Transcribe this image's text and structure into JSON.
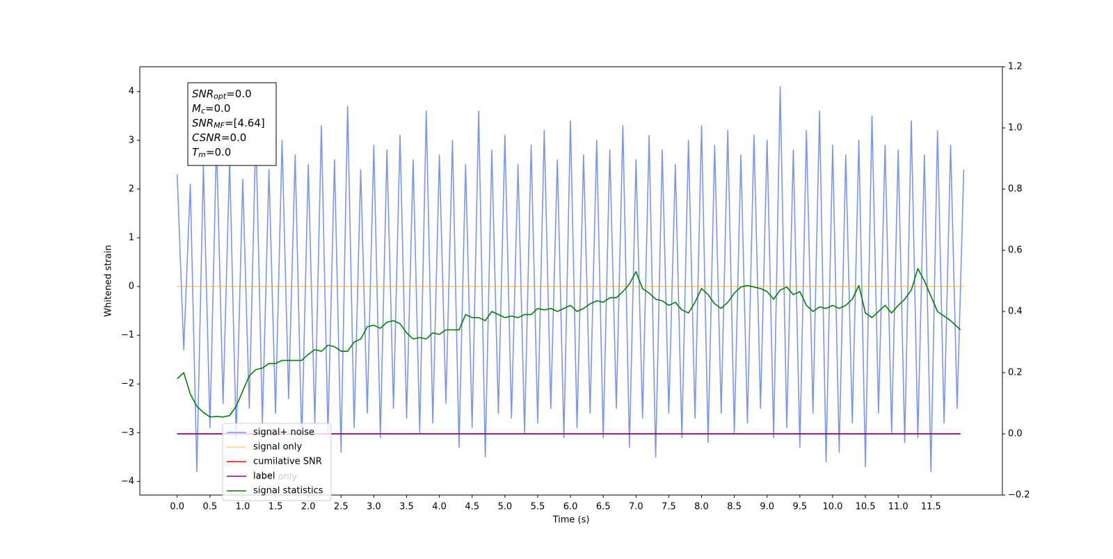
{
  "chart_data": {
    "type": "line",
    "xlabel": "Time (s)",
    "ylabel": "Whitened strain",
    "xlim": [
      -0.57,
      12.59
    ],
    "ylim": [
      -4.28,
      4.51
    ],
    "y2lim": [
      -0.2,
      1.2
    ],
    "xticks": [
      {
        "value": 0,
        "label": "0.0"
      },
      0.5,
      {
        "value": 1,
        "label": "1.0"
      },
      1.5,
      {
        "value": 2,
        "label": "2.0"
      },
      2.5,
      {
        "value": 3,
        "label": "3.0"
      },
      3.5,
      {
        "value": 4,
        "label": "4.0"
      },
      4.5,
      {
        "value": 5,
        "label": "5.0"
      },
      5.5,
      {
        "value": 6,
        "label": "6.0"
      },
      6.5,
      {
        "value": 7,
        "label": "7.0"
      },
      7.5,
      {
        "value": 8,
        "label": "8.0"
      },
      8.5,
      {
        "value": 9,
        "label": "9.0"
      },
      9.5,
      {
        "value": 10,
        "label": "10.0"
      },
      10.5,
      {
        "value": 11,
        "label": "11.0"
      },
      11.5
    ],
    "yticks": [
      {
        "value": -4,
        "label": "−4"
      },
      {
        "value": -3,
        "label": "−3"
      },
      {
        "value": -2,
        "label": "−2"
      },
      {
        "value": -1,
        "label": "−1"
      },
      0,
      1,
      2,
      3,
      4
    ],
    "y2ticks": [
      {
        "value": -0.2,
        "label": "−0.2"
      },
      {
        "value": 0,
        "label": "0.0"
      },
      0.2,
      0.4,
      0.6,
      0.8,
      {
        "value": 1,
        "label": "1.0"
      },
      1.2
    ],
    "legend": "lower left",
    "series": [
      {
        "name": "signal+ noise",
        "color": "#4169e1",
        "alpha": 0.7,
        "x": [
          0,
          0.1,
          0.2,
          0.3,
          0.4,
          0.5,
          0.6,
          0.7,
          0.8,
          0.9,
          1,
          1.1,
          1.2,
          1.3,
          1.4,
          1.5,
          1.6,
          1.7,
          1.8,
          1.9,
          2,
          2.1,
          2.2,
          2.3,
          2.4,
          2.5,
          2.6,
          2.7,
          2.8,
          2.9,
          3,
          3.1,
          3.2,
          3.3,
          3.4,
          3.5,
          3.6,
          3.7,
          3.8,
          3.9,
          4,
          4.1,
          4.2,
          4.3,
          4.4,
          4.5,
          4.6,
          4.7,
          4.8,
          4.9,
          5,
          5.1,
          5.2,
          5.3,
          5.4,
          5.5,
          5.6,
          5.7,
          5.8,
          5.9,
          6,
          6.1,
          6.2,
          6.3,
          6.4,
          6.5,
          6.6,
          6.7,
          6.8,
          6.9,
          7,
          7.1,
          7.2,
          7.3,
          7.4,
          7.5,
          7.6,
          7.7,
          7.8,
          7.9,
          8,
          8.1,
          8.2,
          8.3,
          8.4,
          8.5,
          8.6,
          8.7,
          8.8,
          8.9,
          9,
          9.1,
          9.2,
          9.3,
          9.4,
          9.5,
          9.6,
          9.7,
          9.8,
          9.9,
          10,
          10.1,
          10.2,
          10.3,
          10.4,
          10.5,
          10.6,
          10.7,
          10.8,
          10.9,
          11,
          11.1,
          11.2,
          11.3,
          11.4,
          11.5,
          11.6,
          11.7,
          11.8,
          11.9,
          12
        ],
        "values": [
          2.3,
          -1.3,
          2.1,
          -3.8,
          2.5,
          -2.9,
          3.0,
          -2.4,
          2.6,
          -3.1,
          2.2,
          -2.5,
          3.2,
          -2.8,
          2.4,
          -2.6,
          3.0,
          -2.3,
          2.7,
          -3.2,
          2.5,
          -2.8,
          3.3,
          -3.0,
          2.6,
          -3.4,
          3.7,
          -2.9,
          2.4,
          -2.6,
          2.9,
          -3.1,
          2.8,
          -2.5,
          3.1,
          -2.7,
          2.6,
          -3.0,
          3.6,
          -2.8,
          2.7,
          -2.4,
          3.0,
          -3.3,
          2.5,
          -2.9,
          3.6,
          -3.5,
          2.8,
          -2.6,
          3.1,
          -2.7,
          2.5,
          -3.0,
          2.9,
          -2.8,
          3.2,
          -2.5,
          2.6,
          -3.1,
          3.4,
          -2.9,
          2.7,
          -2.6,
          3.0,
          -3.1,
          2.8,
          -2.5,
          3.3,
          -3.3,
          2.6,
          -2.7,
          3.1,
          -3.5,
          2.8,
          -2.6,
          2.5,
          -3.1,
          3.0,
          -2.7,
          3.3,
          -3.2,
          2.9,
          -2.6,
          3.2,
          -3.0,
          2.7,
          -2.8,
          3.1,
          -2.5,
          3.0,
          -3.1,
          4.1,
          -2.9,
          2.8,
          -3.3,
          3.2,
          -2.6,
          3.6,
          -3.6,
          2.9,
          -3.4,
          2.7,
          -2.8,
          3.0,
          -3.7,
          3.5,
          -2.6,
          2.9,
          -3.0,
          2.8,
          -3.2,
          3.4,
          -3.1,
          2.7,
          -3.8,
          3.2,
          -2.8,
          2.9,
          -2.5,
          2.4
        ]
      },
      {
        "name": "signal only",
        "color": "#ffa500",
        "alpha": 0.5,
        "x": [
          0,
          12
        ],
        "values": [
          0,
          0
        ]
      },
      {
        "name": "cumilative SNR",
        "color": "#ff0000",
        "alpha": 1,
        "axis": "y2",
        "x": [
          0,
          11.95
        ],
        "values": [
          0,
          0
        ]
      },
      {
        "name": "label",
        "color": "#800080",
        "alpha": 1,
        "axis": "y2",
        "x": [
          0,
          11.95
        ],
        "values": [
          0,
          0
        ]
      },
      {
        "name": "signal statistics",
        "color": "#008000",
        "alpha": 1,
        "axis": "y2",
        "x": [
          0,
          0.1,
          0.2,
          0.3,
          0.4,
          0.5,
          0.6,
          0.7,
          0.8,
          0.9,
          1,
          1.1,
          1.2,
          1.3,
          1.4,
          1.5,
          1.6,
          1.7,
          1.8,
          1.9,
          2,
          2.1,
          2.2,
          2.3,
          2.4,
          2.5,
          2.6,
          2.7,
          2.8,
          2.9,
          3,
          3.1,
          3.2,
          3.3,
          3.4,
          3.5,
          3.6,
          3.7,
          3.8,
          3.9,
          4,
          4.1,
          4.2,
          4.3,
          4.4,
          4.5,
          4.6,
          4.7,
          4.8,
          4.9,
          5,
          5.1,
          5.2,
          5.3,
          5.4,
          5.5,
          5.6,
          5.7,
          5.8,
          5.9,
          6,
          6.1,
          6.2,
          6.3,
          6.4,
          6.5,
          6.6,
          6.7,
          6.8,
          6.9,
          7,
          7.1,
          7.2,
          7.3,
          7.4,
          7.5,
          7.6,
          7.7,
          7.8,
          7.9,
          8,
          8.1,
          8.2,
          8.3,
          8.4,
          8.5,
          8.6,
          8.7,
          8.8,
          8.9,
          9,
          9.1,
          9.2,
          9.3,
          9.4,
          9.5,
          9.6,
          9.7,
          9.8,
          9.9,
          10,
          10.1,
          10.2,
          10.3,
          10.4,
          10.5,
          10.6,
          10.7,
          10.8,
          10.9,
          11,
          11.1,
          11.2,
          11.3,
          11.4,
          11.5,
          11.6,
          11.7,
          11.8,
          11.9,
          11.95
        ],
        "values": [
          0.18,
          0.2,
          0.13,
          0.09,
          0.07,
          0.055,
          0.057,
          0.055,
          0.06,
          0.09,
          0.14,
          0.19,
          0.21,
          0.215,
          0.23,
          0.23,
          0.24,
          0.24,
          0.24,
          0.24,
          0.26,
          0.275,
          0.27,
          0.29,
          0.285,
          0.27,
          0.27,
          0.3,
          0.31,
          0.35,
          0.355,
          0.345,
          0.365,
          0.37,
          0.36,
          0.33,
          0.31,
          0.315,
          0.31,
          0.33,
          0.325,
          0.34,
          0.34,
          0.34,
          0.39,
          0.38,
          0.38,
          0.37,
          0.4,
          0.39,
          0.38,
          0.385,
          0.38,
          0.39,
          0.39,
          0.41,
          0.405,
          0.41,
          0.4,
          0.41,
          0.42,
          0.4,
          0.41,
          0.425,
          0.435,
          0.43,
          0.445,
          0.445,
          0.465,
          0.49,
          0.53,
          0.475,
          0.46,
          0.44,
          0.435,
          0.42,
          0.43,
          0.405,
          0.395,
          0.43,
          0.475,
          0.455,
          0.425,
          0.41,
          0.43,
          0.46,
          0.48,
          0.485,
          0.48,
          0.475,
          0.465,
          0.44,
          0.47,
          0.48,
          0.455,
          0.465,
          0.42,
          0.4,
          0.415,
          0.41,
          0.42,
          0.41,
          0.42,
          0.44,
          0.485,
          0.395,
          0.38,
          0.4,
          0.42,
          0.395,
          0.42,
          0.44,
          0.47,
          0.54,
          0.5,
          0.45,
          0.4,
          0.385,
          0.37,
          0.35,
          0.34
        ]
      }
    ],
    "annotations": [
      "label only"
    ],
    "info_box": [
      {
        "name": "SNR",
        "sub": "opt",
        "text": "=0.0"
      },
      {
        "name": "M",
        "sub": "c",
        "text": "=0.0"
      },
      {
        "name": "SNR",
        "sub": "MF",
        "text": "=[4.64]"
      },
      {
        "name": "CSNR",
        "text": "=0.0"
      },
      {
        "name": "T",
        "sub": "m",
        "text": "=0.0"
      }
    ]
  }
}
